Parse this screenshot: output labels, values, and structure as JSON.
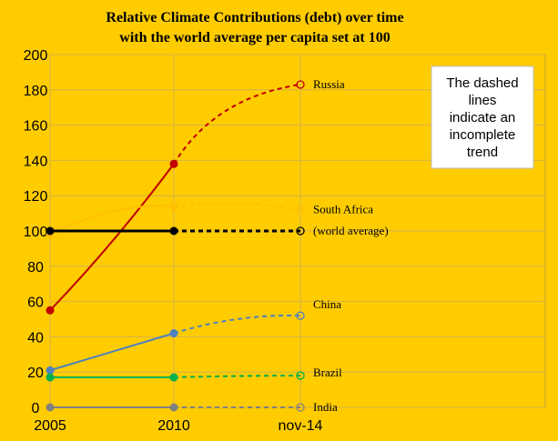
{
  "chart_data": {
    "type": "line",
    "title_line1": "Relative Climate Contributions (debt) over time",
    "title_line2": "with the world average per capita set at 100",
    "categories": [
      "2005",
      "2010",
      "nov-14"
    ],
    "ylim": [
      0,
      200
    ],
    "yticks": [
      0,
      20,
      40,
      60,
      80,
      100,
      120,
      140,
      160,
      180,
      200
    ],
    "grid": true,
    "note_lines": [
      "The dashed",
      "lines",
      "indicate an",
      "incomplete",
      "trend"
    ],
    "series": [
      {
        "name": "Russia",
        "color": "#C00000",
        "values": [
          55,
          138,
          183
        ]
      },
      {
        "name": "South Africa",
        "color": "#FFC000",
        "values": [
          98,
          114,
          112
        ]
      },
      {
        "name": "(world average)",
        "color": "#000000",
        "values": [
          100,
          100,
          100
        ]
      },
      {
        "name": "China",
        "color": "#4F81BD",
        "values": [
          21,
          42,
          52
        ]
      },
      {
        "name": "Brazil",
        "color": "#00B050",
        "values": [
          17,
          17,
          18
        ]
      },
      {
        "name": "India",
        "color": "#808080",
        "values": [
          0,
          0,
          0
        ]
      }
    ]
  }
}
